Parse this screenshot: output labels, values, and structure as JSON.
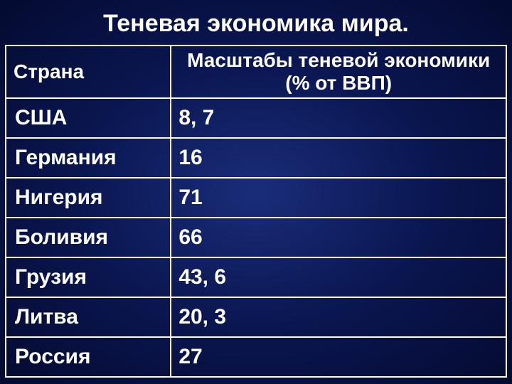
{
  "slide": {
    "title": "Теневая экономика мира.",
    "title_fontsize": 34,
    "background_gradient": {
      "type": "radial",
      "center_color": "#1a2d7a",
      "mid_color": "#0a1650",
      "edge_color": "#040a30"
    },
    "text_color": "#ffffff",
    "border_color": "#ffffff"
  },
  "table": {
    "type": "table",
    "columns": [
      "Страна",
      "Масштабы теневой экономики (% от ВВП)"
    ],
    "column_widths_pct": [
      33,
      67
    ],
    "column_align": [
      "left",
      "center"
    ],
    "header_fontsize": 28,
    "cell_fontsize": 30,
    "cell_fontweight": "bold",
    "rows": [
      {
        "country": "США",
        "value": "8, 7"
      },
      {
        "country": "Германия",
        "value": "16"
      },
      {
        "country": "Нигерия",
        "value": "71"
      },
      {
        "country": "Боливия",
        "value": "66"
      },
      {
        "country": "Грузия",
        "value": "43, 6"
      },
      {
        "country": "Литва",
        "value": "20, 3"
      },
      {
        "country": "Россия",
        "value": "27"
      }
    ]
  }
}
